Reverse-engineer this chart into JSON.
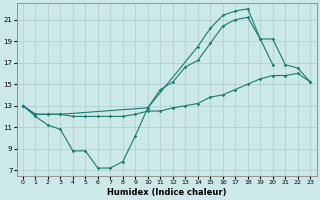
{
  "xlabel": "Humidex (Indice chaleur)",
  "background_color": "#cce8e8",
  "grid_color": "#aacfcf",
  "line_color": "#1a7a6e",
  "xlim": [
    -0.5,
    23.5
  ],
  "ylim": [
    6.5,
    22.5
  ],
  "xticks": [
    0,
    1,
    2,
    3,
    4,
    5,
    6,
    7,
    8,
    9,
    10,
    11,
    12,
    13,
    14,
    15,
    16,
    17,
    18,
    19,
    20,
    21,
    22,
    23
  ],
  "yticks": [
    7,
    9,
    11,
    13,
    15,
    17,
    19,
    21
  ],
  "line1_x": [
    0,
    1,
    2,
    3,
    4,
    5,
    6,
    7,
    8,
    9,
    10,
    11,
    12,
    13,
    14,
    15,
    16,
    17,
    18,
    19,
    20,
    21,
    22,
    23
  ],
  "line1_y": [
    13.0,
    12.2,
    12.2,
    12.2,
    12.0,
    12.0,
    12.0,
    12.0,
    12.0,
    12.2,
    12.5,
    12.5,
    12.8,
    13.0,
    13.2,
    13.8,
    14.0,
    14.5,
    15.0,
    15.5,
    15.8,
    15.8,
    16.0,
    15.2
  ],
  "line2_x": [
    0,
    1,
    2,
    3,
    4,
    5,
    6,
    7,
    8,
    9,
    10,
    11,
    12,
    13,
    14,
    15,
    16,
    17,
    18,
    19,
    20,
    21,
    22,
    23
  ],
  "line2_y": [
    13.0,
    12.0,
    11.2,
    10.8,
    8.8,
    8.8,
    7.2,
    7.2,
    7.8,
    10.2,
    12.8,
    14.5,
    15.2,
    16.6,
    17.2,
    18.8,
    20.4,
    21.0,
    21.2,
    19.2,
    16.8,
    null,
    null,
    null
  ],
  "line3_x": [
    0,
    1,
    2,
    3,
    10,
    14,
    15,
    16,
    17,
    18,
    19,
    20,
    21,
    22,
    23
  ],
  "line3_y": [
    13.0,
    12.2,
    12.2,
    12.2,
    12.8,
    18.5,
    20.2,
    21.4,
    21.8,
    22.0,
    19.2,
    19.2,
    16.8,
    16.5,
    15.2
  ]
}
